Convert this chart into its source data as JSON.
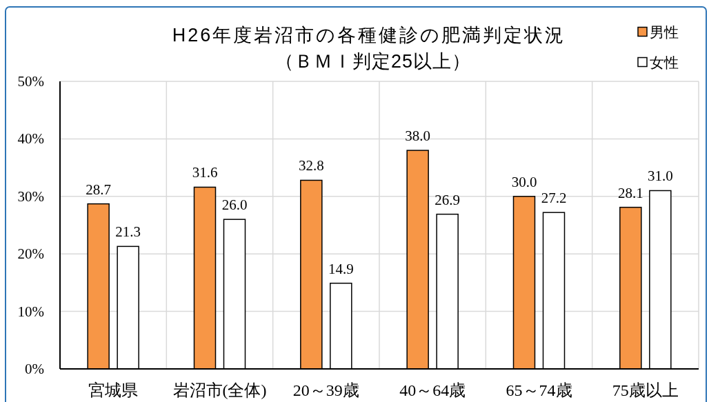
{
  "chart_data": {
    "type": "bar",
    "title": "H26年度岩沼市の各種健診の肥満判定状況",
    "subtitle": "（ＢＭＩ判定25以上）",
    "categories": [
      "宮城県",
      "岩沼市(全体)",
      "20～39歳",
      "40～64歳",
      "65～74歳",
      "75歳以上"
    ],
    "series": [
      {
        "name": "男性",
        "color": "#f79646",
        "values": [
          28.7,
          31.6,
          32.8,
          38.0,
          30.0,
          28.1
        ],
        "value_labels": [
          "28.7",
          "31.6",
          "32.8",
          "38.0",
          "30.0",
          "28.1"
        ]
      },
      {
        "name": "女性",
        "color": "#ffffff",
        "values": [
          21.3,
          26.0,
          14.9,
          26.9,
          27.2,
          31.0
        ],
        "value_labels": [
          "21.3",
          "26.0",
          "14.9",
          "26.9",
          "27.2",
          "31.0"
        ]
      }
    ],
    "ylim": [
      0,
      50
    ],
    "yticks": [
      {
        "value": 0,
        "label": "0%"
      },
      {
        "value": 10,
        "label": "10%"
      },
      {
        "value": 20,
        "label": "20%"
      },
      {
        "value": 30,
        "label": "30%"
      },
      {
        "value": 40,
        "label": "40%"
      },
      {
        "value": 50,
        "label": "50%"
      }
    ],
    "grid": true,
    "legend": "top right"
  }
}
